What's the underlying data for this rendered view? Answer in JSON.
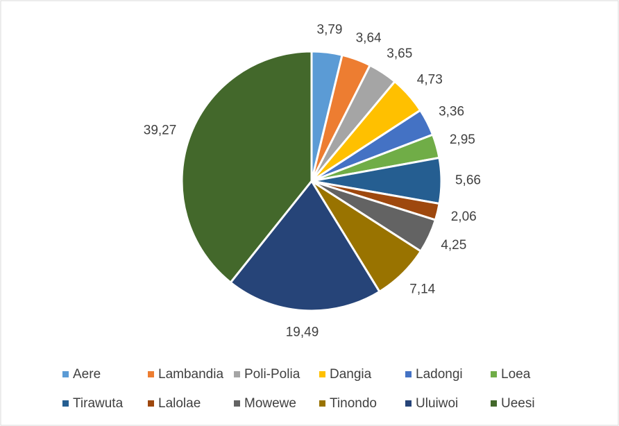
{
  "chart_data": {
    "type": "pie",
    "categories": [
      "Aere",
      "Lambandia",
      "Poli-Polia",
      "Dangia",
      "Ladongi",
      "Loea",
      "Tirawuta",
      "Lalolae",
      "Mowewe",
      "Tinondo",
      "Uluiwoi",
      "Ueesi"
    ],
    "values": [
      3.79,
      3.64,
      3.65,
      4.73,
      3.36,
      2.95,
      5.66,
      2.06,
      4.25,
      7.14,
      19.49,
      39.27
    ],
    "value_labels": [
      "3,79",
      "3,64",
      "3,65",
      "4,73",
      "3,36",
      "2,95",
      "5,66",
      "2,06",
      "4,25",
      "7,14",
      "19,49",
      "39,27"
    ],
    "colors": [
      "#5b9bd5",
      "#ed7d31",
      "#a5a5a5",
      "#ffc000",
      "#4472c4",
      "#70ad47",
      "#255e91",
      "#9e480e",
      "#636363",
      "#997300",
      "#264478",
      "#43682b"
    ],
    "legend": "bottom"
  }
}
